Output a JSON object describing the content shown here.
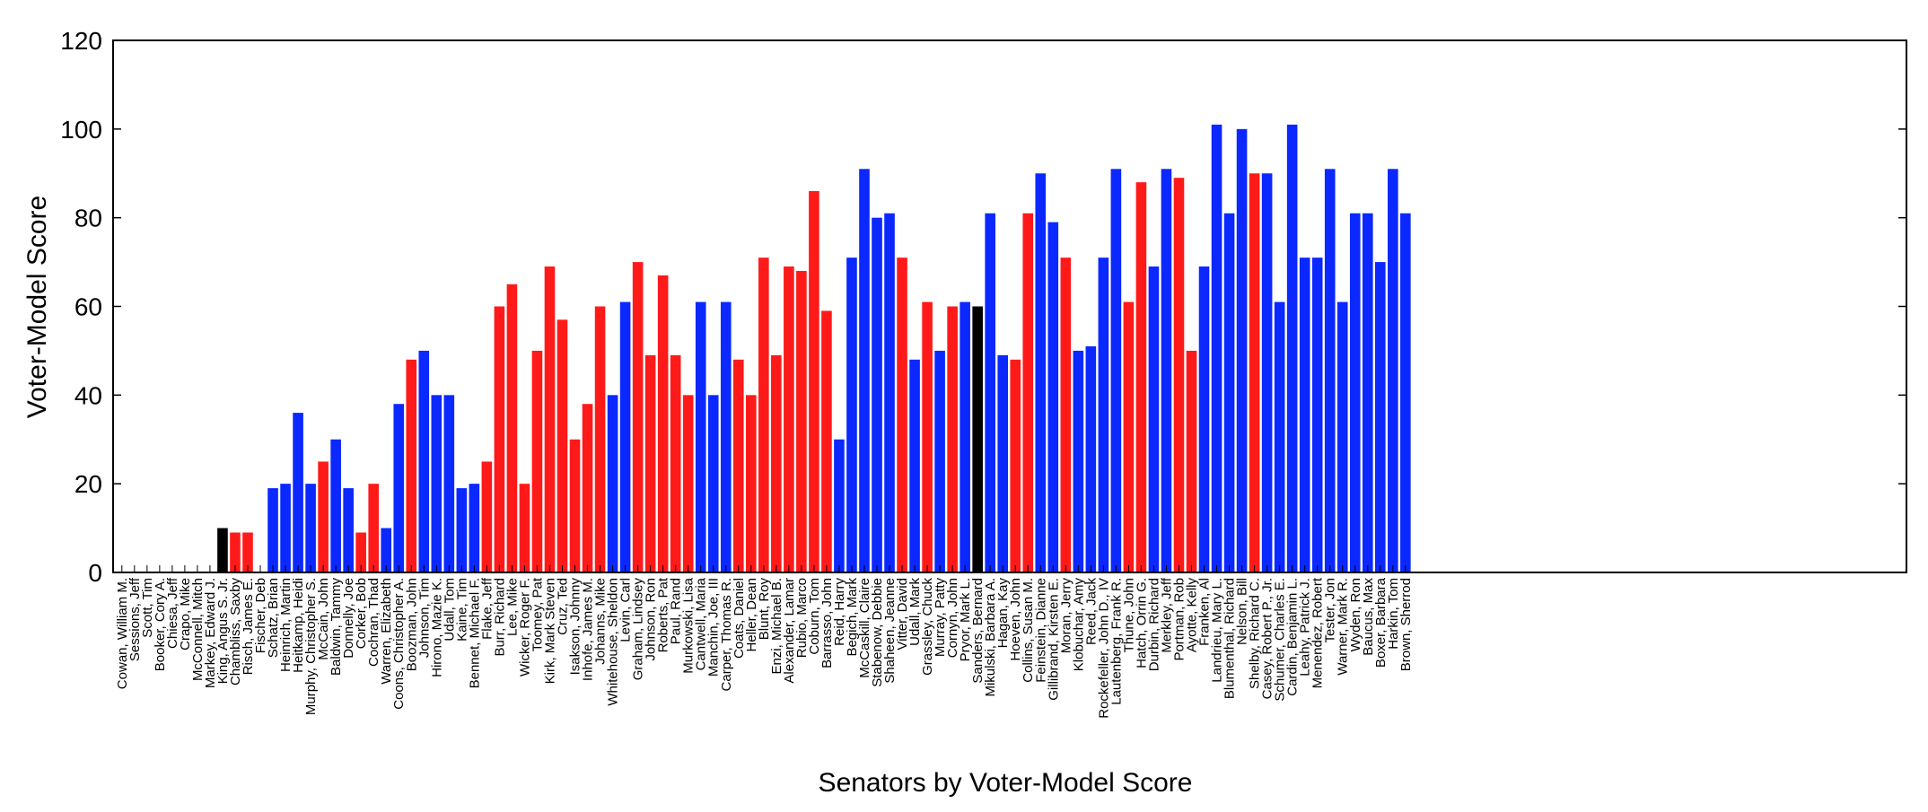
{
  "chart_data": {
    "type": "bar",
    "title": "",
    "xlabel": "Senators by Voter-Model Score",
    "ylabel": "Voter-Model Score",
    "ylim": [
      0,
      120
    ],
    "yticks": [
      0,
      20,
      40,
      60,
      80,
      100,
      120
    ],
    "grid": false,
    "legend": "none",
    "colors": {
      "blue": "#0a28ff",
      "red": "#ff1a1a",
      "black": "#000000"
    },
    "categories": [
      "Cowan, William M.",
      "Sessions, Jeff",
      "Scott, Tim",
      "Booker, Cory A.",
      "Chiesa, Jeff",
      "Crapo, Mike",
      "McConnell, Mitch",
      "Markey, Edward J.",
      "King, Angus S. Jr.",
      "Chambliss, Saxby",
      "Risch, James E.",
      "Fischer, Deb",
      "Schatz, Brian",
      "Heinrich, Martin",
      "Heitkamp, Heidi",
      "Murphy, Christopher S.",
      "McCain, John",
      "Baldwin, Tammy",
      "Donnelly, Joe",
      "Corker, Bob",
      "Cochran, Thad",
      "Warren, Elizabeth",
      "Coons, Christopher A.",
      "Boozman, John",
      "Johnson, Tim",
      "Hirono, Mazie K.",
      "Udall, Tom",
      "Kaine, Tim",
      "Bennet, Michael F.",
      "Flake, Jeff",
      "Burr, Richard",
      "Lee, Mike",
      "Wicker, Roger F.",
      "Toomey, Pat",
      "Kirk, Mark Steven",
      "Cruz, Ted",
      "Isakson, Johnny",
      "Inhofe, James M.",
      "Johanns, Mike",
      "Whitehouse, Sheldon",
      "Levin, Carl",
      "Graham, Lindsey",
      "Johnson, Ron",
      "Roberts, Pat",
      "Paul, Rand",
      "Murkowski, Lisa",
      "Cantwell, Maria",
      "Manchin, Joe, III",
      "Carper, Thomas R.",
      "Coats, Daniel",
      "Heller, Dean",
      "Blunt, Roy",
      "Enzi, Michael B.",
      "Alexander, Lamar",
      "Rubio, Marco",
      "Coburn, Tom",
      "Barrasso, John",
      "Reid, Harry",
      "Begich, Mark",
      "McCaskill, Claire",
      "Stabenow, Debbie",
      "Shaheen, Jeanne",
      "Vitter, David",
      "Udall, Mark",
      "Grassley, Chuck",
      "Murray, Patty",
      "Cornyn, John",
      "Pryor, Mark L.",
      "Sanders, Bernard",
      "Mikulski, Barbara A.",
      "Hagan, Kay",
      "Hoeven, John",
      "Collins, Susan M.",
      "Feinstein, Dianne",
      "Gillibrand, Kirsten E.",
      "Moran, Jerry",
      "Klobuchar, Amy",
      "Reed, Jack",
      "Rockefeller, John D., IV",
      "Lautenberg, Frank R.",
      "Thune, John",
      "Hatch, Orrin G.",
      "Durbin, Richard",
      "Merkley, Jeff",
      "Portman, Rob",
      "Ayotte, Kelly",
      "Franken, Al",
      "Landrieu, Mary L.",
      "Blumenthal, Richard",
      "Nelson, Bill",
      "Shelby, Richard C.",
      "Casey, Robert P., Jr.",
      "Schumer, Charles E.",
      "Cardin, Benjamin L.",
      "Leahy, Patrick J.",
      "Menendez, Robert",
      "Tester, Jon",
      "Warner, Mark R.",
      "Wyden, Ron",
      "Baucus, Max",
      "Boxer, Barbara",
      "Harkin, Tom",
      "Brown, Sherrod"
    ],
    "values": [
      0,
      0,
      0,
      0,
      0,
      0,
      0,
      0,
      10,
      9,
      9,
      0,
      19,
      20,
      36,
      20,
      25,
      30,
      19,
      9,
      20,
      10,
      38,
      48,
      50,
      40,
      40,
      19,
      20,
      25,
      60,
      65,
      20,
      50,
      69,
      57,
      30,
      38,
      60,
      40,
      61,
      70,
      49,
      67,
      49,
      40,
      61,
      40,
      61,
      48,
      40,
      71,
      49,
      69,
      68,
      86,
      59,
      30,
      71,
      91,
      80,
      81,
      71,
      48,
      61,
      50,
      60,
      61,
      60,
      81,
      49,
      48,
      81,
      90,
      79,
      71,
      50,
      51,
      71,
      91,
      61,
      88,
      69,
      91,
      89,
      50,
      69,
      101,
      81,
      100,
      90,
      90,
      61,
      101,
      71,
      71,
      91,
      61,
      81,
      81,
      70,
      91,
      81
    ],
    "bar_colors": [
      "blue",
      "red",
      "red",
      "blue",
      "red",
      "red",
      "red",
      "blue",
      "black",
      "red",
      "red",
      "red",
      "blue",
      "blue",
      "blue",
      "blue",
      "red",
      "blue",
      "blue",
      "red",
      "red",
      "blue",
      "blue",
      "red",
      "blue",
      "blue",
      "blue",
      "blue",
      "blue",
      "red",
      "red",
      "red",
      "red",
      "red",
      "red",
      "red",
      "red",
      "red",
      "red",
      "blue",
      "blue",
      "red",
      "red",
      "red",
      "red",
      "red",
      "blue",
      "blue",
      "blue",
      "red",
      "red",
      "red",
      "red",
      "red",
      "red",
      "red",
      "red",
      "blue",
      "blue",
      "blue",
      "blue",
      "blue",
      "red",
      "blue",
      "red",
      "blue",
      "red",
      "blue",
      "black",
      "blue",
      "blue",
      "red",
      "red",
      "blue",
      "blue",
      "red",
      "blue",
      "blue",
      "blue",
      "blue",
      "red",
      "red",
      "blue",
      "blue",
      "red",
      "red",
      "blue",
      "blue",
      "blue",
      "blue",
      "red",
      "blue",
      "blue",
      "blue",
      "blue",
      "blue",
      "blue",
      "blue",
      "blue",
      "blue",
      "blue",
      "blue",
      "blue"
    ]
  }
}
